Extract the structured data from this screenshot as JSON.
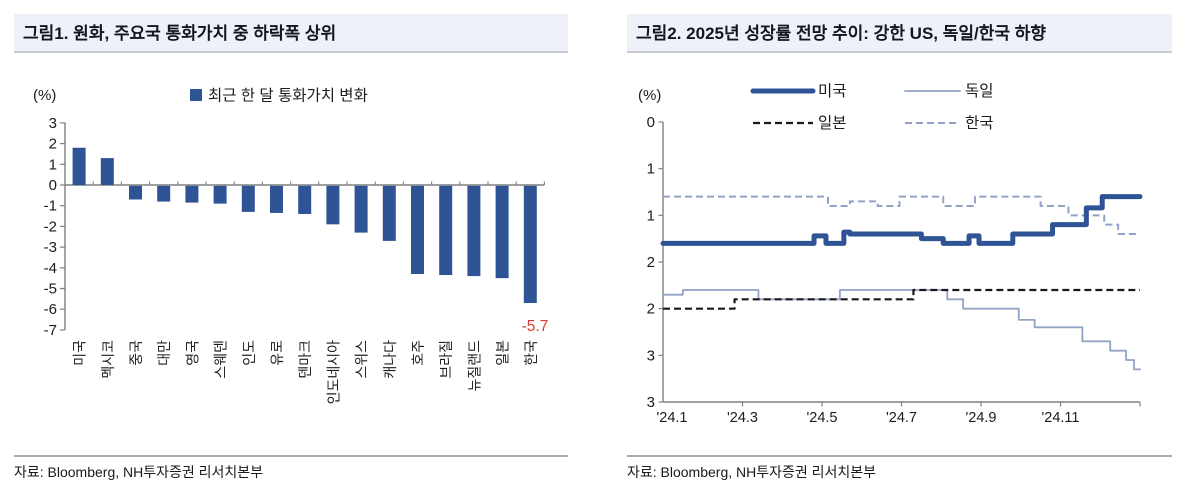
{
  "source_label": "자료: Bloomberg, NH투자증권 리서치본부",
  "chart_data": [
    {
      "type": "bar",
      "panel_title": "그림1. 원화, 주요국 통화가치 중 하락폭 상위",
      "unit_label": "(%)",
      "legend": "최근 한 달 통화가치 변화",
      "source": "자료: Bloomberg, NH투자증권 리서치본부",
      "bar_color": "#2f5496",
      "axis_color": "#808080",
      "text_color": "#1c1c1c",
      "ylim": [
        -7,
        3
      ],
      "yticks": [
        3,
        2,
        1,
        0,
        -1,
        -2,
        -3,
        -4,
        -5,
        -6,
        -7
      ],
      "categories": [
        "미국",
        "멕시코",
        "중국",
        "대만",
        "영국",
        "스웨덴",
        "인도",
        "유로",
        "덴마크",
        "인도네시아",
        "스위스",
        "캐나다",
        "호주",
        "브라질",
        "뉴질랜드",
        "일본",
        "한국"
      ],
      "values": [
        1.8,
        1.3,
        -0.7,
        -0.8,
        -0.85,
        -0.9,
        -1.3,
        -1.35,
        -1.4,
        -1.9,
        -2.3,
        -2.7,
        -4.3,
        -4.35,
        -4.4,
        -4.5,
        -5.7
      ],
      "annotation": {
        "text": "-5.7",
        "color": "#d93a32",
        "category": "한국"
      }
    },
    {
      "type": "line",
      "panel_title": "그림2. 2025년 성장률 전망 추이: 강한 US, 독일/한국 하향",
      "unit_label": "(%)",
      "source": "자료: Bloomberg, NH투자증권 리서치본부",
      "axis_color": "#808080",
      "text_color": "#1c1c1c",
      "x_axis": {
        "xlim": [
          0,
          12
        ],
        "tick_months": [
          2,
          4,
          6,
          8,
          10,
          12
        ],
        "label_months": [
          0,
          2,
          4,
          6,
          8,
          10
        ],
        "labels": [
          "'24.1",
          "'24.3",
          "'24.5",
          "'24.7",
          "'24.9",
          "'24.11"
        ]
      },
      "y_axis": {
        "ylim": [
          0,
          3
        ],
        "tick_values": [
          0,
          0.5,
          1,
          1.5,
          2,
          2.5,
          3
        ],
        "tick_labels": [
          "0",
          "1",
          "1",
          "2",
          "2",
          "3",
          "3"
        ]
      },
      "series": [
        {
          "name": "미국",
          "color": "#2f5496",
          "dash": "solid",
          "width": 5,
          "segments": [
            [
              0,
              3.8,
              1.7
            ],
            [
              3.8,
              4.1,
              1.78
            ],
            [
              4.1,
              4.55,
              1.7
            ],
            [
              4.55,
              4.7,
              1.82
            ],
            [
              4.7,
              6.5,
              1.8
            ],
            [
              6.5,
              7.05,
              1.75
            ],
            [
              7.05,
              7.7,
              1.7
            ],
            [
              7.7,
              7.95,
              1.78
            ],
            [
              7.95,
              8.8,
              1.7
            ],
            [
              8.8,
              9.8,
              1.8
            ],
            [
              9.8,
              10.65,
              1.9
            ],
            [
              10.65,
              11.05,
              2.08
            ],
            [
              11.05,
              12,
              2.2
            ]
          ]
        },
        {
          "name": "독일",
          "color": "#93a2c7",
          "dash": "solid",
          "width": 1.8,
          "segments": [
            [
              0,
              0.5,
              1.15
            ],
            [
              0.5,
              2.4,
              1.2
            ],
            [
              2.4,
              4.45,
              1.1
            ],
            [
              4.45,
              7.15,
              1.2
            ],
            [
              7.15,
              7.55,
              1.1
            ],
            [
              7.55,
              8.95,
              1.0
            ],
            [
              8.95,
              9.35,
              0.88
            ],
            [
              9.35,
              10.55,
              0.8
            ],
            [
              10.55,
              11.25,
              0.65
            ],
            [
              11.25,
              11.65,
              0.55
            ],
            [
              11.65,
              11.85,
              0.45
            ],
            [
              11.85,
              12,
              0.35
            ]
          ]
        },
        {
          "name": "일본",
          "color": "#1a1a1a",
          "dash": "dashed",
          "width": 2.2,
          "segments": [
            [
              0,
              1.8,
              1.0
            ],
            [
              1.8,
              6.3,
              1.1
            ],
            [
              6.3,
              12,
              1.2
            ]
          ]
        },
        {
          "name": "한국",
          "color": "#93a2c7",
          "dash": "dashed",
          "width": 2,
          "segments": [
            [
              0,
              4.15,
              2.2
            ],
            [
              4.15,
              4.7,
              2.1
            ],
            [
              4.7,
              5.4,
              2.15
            ],
            [
              5.4,
              5.95,
              2.1
            ],
            [
              5.95,
              7.05,
              2.2
            ],
            [
              7.05,
              7.85,
              2.1
            ],
            [
              7.85,
              9.5,
              2.2
            ],
            [
              9.5,
              10.2,
              2.1
            ],
            [
              10.2,
              11.1,
              2.0
            ],
            [
              11.1,
              11.45,
              1.9
            ],
            [
              11.45,
              12,
              1.8
            ]
          ]
        }
      ]
    }
  ]
}
